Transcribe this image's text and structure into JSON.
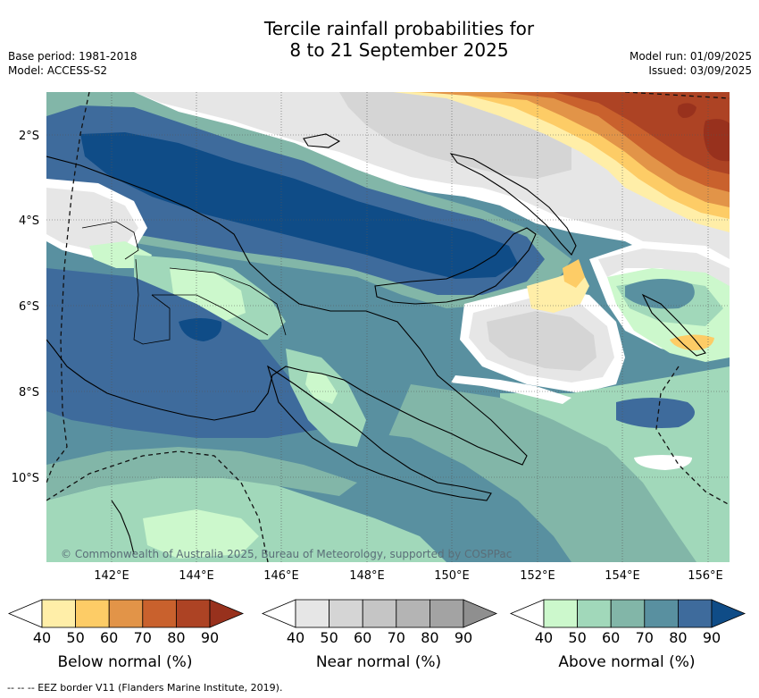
{
  "title": {
    "line1": "Tercile rainfall probabilities for",
    "line2": "8 to 21 September 2025"
  },
  "meta_left": {
    "base_period": "Base period: 1981-2018",
    "model": "Model: ACCESS-S2"
  },
  "meta_right": {
    "model_run": "Model run: 01/09/2025",
    "issued": "Issued: 03/09/2025"
  },
  "map": {
    "lat_labels": [
      "2°S",
      "4°S",
      "6°S",
      "8°S",
      "10°S"
    ],
    "lon_labels": [
      "142°E",
      "144°E",
      "146°E",
      "148°E",
      "150°E",
      "152°E",
      "154°E",
      "156°E"
    ],
    "copyright": "© Commonwealth of Australia 2025, Bureau of Meteorology, supported by COSPPac"
  },
  "colorbars": [
    {
      "label": "Below normal (%)",
      "ticks": [
        "40",
        "50",
        "60",
        "70",
        "80",
        "90"
      ],
      "colors": [
        "#ffffff",
        "#ffeea8",
        "#fdcc66",
        "#e29448",
        "#c9612d",
        "#ad4324",
        "#98311d"
      ]
    },
    {
      "label": "Near normal (%)",
      "ticks": [
        "40",
        "50",
        "60",
        "70",
        "80",
        "90"
      ],
      "colors": [
        "#ffffff",
        "#e6e6e6",
        "#d5d5d5",
        "#c5c5c5",
        "#b4b4b4",
        "#a3a3a3",
        "#8f8f8f"
      ]
    },
    {
      "label": "Above normal (%)",
      "ticks": [
        "40",
        "50",
        "60",
        "70",
        "80",
        "90"
      ],
      "colors": [
        "#ffffff",
        "#ccf8cc",
        "#a1d8ba",
        "#82b6a8",
        "#5990a0",
        "#3e6b9c",
        "#0f4c87"
      ]
    }
  ],
  "footer": "--  --  -- EEZ border V11 (Flanders Marine Institute, 2019)."
}
